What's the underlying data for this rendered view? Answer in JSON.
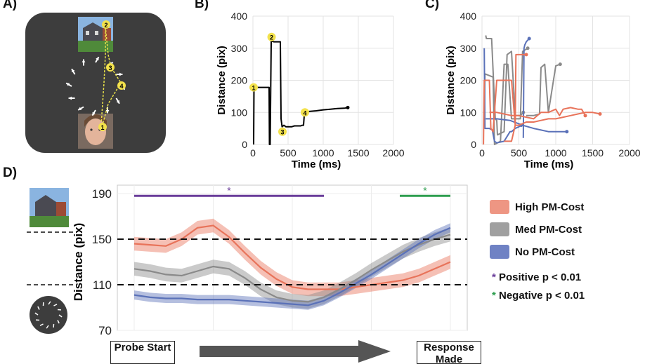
{
  "panels": {
    "a": {
      "letter": "A)"
    },
    "b": {
      "letter": "B)"
    },
    "c": {
      "letter": "C)"
    },
    "d": {
      "letter": "D)"
    }
  },
  "task_screen": {
    "probe_image": "house-photo",
    "face_image": "face-photo",
    "arrow_icon": "arrow-icon",
    "markers": [
      "1",
      "2",
      "3",
      "4"
    ],
    "colors": {
      "background": "#3d3d3d",
      "trajectory": "#e9e24a",
      "marker": "#f3e24c"
    }
  },
  "chart_data": [
    {
      "id": "B",
      "type": "line",
      "xlabel": "Time (ms)",
      "ylabel": "Distance (pix)",
      "xlim": [
        0,
        2000
      ],
      "ylim": [
        0,
        400
      ],
      "xticks": [
        "0",
        "500",
        "1000",
        "1500",
        "2000"
      ],
      "yticks": [
        "0",
        "100",
        "200",
        "300",
        "400"
      ],
      "grid": true,
      "series": [
        {
          "color": "#000000",
          "x": [
            10,
            15,
            60,
            120,
            210,
            230,
            235,
            245,
            260,
            300,
            360,
            390,
            400,
            415,
            440,
            470,
            500,
            550,
            590,
            640,
            680,
            700,
            720,
            730,
            740,
            760,
            800,
            900,
            1000,
            1100,
            1200,
            1300,
            1350
          ],
          "y": [
            0,
            178,
            178,
            178,
            178,
            178,
            0,
            0,
            322,
            320,
            320,
            320,
            80,
            55,
            60,
            55,
            55,
            55,
            58,
            58,
            58,
            60,
            60,
            90,
            95,
            100,
            103,
            105,
            108,
            110,
            112,
            113,
            115
          ]
        }
      ],
      "annotations": [
        {
          "label": "1",
          "x": 10,
          "y": 178
        },
        {
          "label": "2",
          "x": 265,
          "y": 335
        },
        {
          "label": "3",
          "x": 420,
          "y": 40
        },
        {
          "label": "4",
          "x": 740,
          "y": 100
        }
      ]
    },
    {
      "id": "C",
      "type": "line",
      "xlabel": "Time (ms)",
      "ylabel": "Distance (pix)",
      "xlim": [
        0,
        2000
      ],
      "ylim": [
        0,
        400
      ],
      "xticks": [
        "0",
        "500",
        "1000",
        "1500",
        "2000"
      ],
      "yticks": [
        "0",
        "100",
        "200",
        "300",
        "400"
      ],
      "grid": true,
      "colors": {
        "high": "#e8735a",
        "med": "#8a8a8a",
        "no": "#5a71b8"
      },
      "series": [
        {
          "color": "#8a8a8a",
          "x": [
            50,
            60,
            130,
            180,
            200,
            210,
            300,
            340,
            400,
            450,
            520,
            560
          ],
          "y": [
            340,
            330,
            330,
            80,
            75,
            30,
            40,
            280,
            290,
            90,
            90,
            100
          ]
        },
        {
          "color": "#8a8a8a",
          "x": [
            30,
            40,
            150,
            170,
            250,
            300,
            350,
            400,
            520,
            550,
            620
          ],
          "y": [
            60,
            220,
            210,
            0,
            10,
            250,
            250,
            80,
            80,
            290,
            300
          ]
        },
        {
          "color": "#8a8a8a",
          "x": [
            600,
            700,
            780,
            800,
            850,
            900,
            1000,
            1060
          ],
          "y": [
            90,
            90,
            95,
            240,
            250,
            100,
            245,
            250
          ]
        },
        {
          "color": "#5a71b8",
          "x": [
            30,
            40,
            100,
            140,
            170,
            200,
            300,
            380,
            400,
            450,
            500,
            530
          ],
          "y": [
            300,
            50,
            50,
            45,
            10,
            5,
            10,
            40,
            40,
            50,
            55,
            60
          ]
        },
        {
          "color": "#5a71b8",
          "x": [
            560,
            570,
            580,
            600,
            640
          ],
          "y": [
            20,
            300,
            310,
            320,
            330
          ]
        },
        {
          "color": "#5a71b8",
          "x": [
            50,
            200,
            380,
            550,
            700,
            800,
            900,
            1000,
            1150
          ],
          "y": [
            80,
            80,
            75,
            60,
            50,
            45,
            40,
            40,
            40
          ]
        },
        {
          "color": "#e8735a",
          "x": [
            20,
            30,
            100,
            120,
            150,
            200,
            300,
            400,
            450,
            460,
            500,
            600
          ],
          "y": [
            0,
            200,
            200,
            50,
            40,
            200,
            200,
            200,
            60,
            280,
            280,
            280
          ]
        },
        {
          "color": "#e8735a",
          "x": [
            300,
            400,
            450,
            500,
            600,
            700,
            800,
            900,
            1000,
            1100,
            1200,
            1300,
            1400,
            1500,
            1600
          ],
          "y": [
            10,
            10,
            60,
            60,
            70,
            70,
            75,
            80,
            80,
            85,
            90,
            95,
            100,
            100,
            95
          ]
        },
        {
          "color": "#e8735a",
          "x": [
            100,
            200,
            300,
            400,
            500,
            600,
            700,
            800,
            900,
            1000,
            1050,
            1100,
            1200,
            1300,
            1350,
            1400
          ],
          "y": [
            100,
            100,
            95,
            90,
            90,
            85,
            80,
            100,
            100,
            110,
            90,
            110,
            115,
            110,
            110,
            90
          ]
        }
      ]
    },
    {
      "id": "D",
      "type": "area",
      "xlabel": "",
      "ylabel": "Distance (pix)",
      "xlim": [
        0,
        100
      ],
      "ylim": [
        70,
        190
      ],
      "yticks": [
        "70",
        "110",
        "150",
        "190"
      ],
      "grid": true,
      "reference_lines": [
        150,
        110
      ],
      "significance_bars": [
        {
          "label": "*",
          "color": "#6a3d9a",
          "x_start": 0,
          "x_end": 60
        },
        {
          "label": "*",
          "color": "#2e9e4f",
          "x_start": 84,
          "x_end": 100
        }
      ],
      "x": [
        0,
        5,
        10,
        15,
        20,
        25,
        30,
        35,
        40,
        45,
        50,
        55,
        60,
        65,
        70,
        75,
        80,
        85,
        90,
        95,
        100
      ],
      "series": [
        {
          "name": "High PM-Cost",
          "color": "#e8735a",
          "values": [
            146,
            145,
            144,
            150,
            160,
            162,
            152,
            138,
            125,
            115,
            108,
            106,
            106,
            106,
            108,
            110,
            112,
            114,
            118,
            124,
            130
          ],
          "band": 6
        },
        {
          "name": "Med PM-Cost",
          "color": "#8a8a8a",
          "values": [
            124,
            122,
            119,
            118,
            122,
            126,
            124,
            116,
            106,
            99,
            96,
            95,
            99,
            106,
            114,
            123,
            131,
            139,
            145,
            150,
            154
          ],
          "band": 6
        },
        {
          "name": "No PM-Cost",
          "color": "#5a71b8",
          "values": [
            101,
            99,
            98,
            98,
            97,
            97,
            97,
            96,
            95,
            94,
            93,
            92,
            96,
            103,
            111,
            119,
            128,
            137,
            146,
            154,
            160
          ],
          "band": 4
        }
      ],
      "legend": {
        "items": [
          {
            "label": "High PM-Cost",
            "color": "#e8735a"
          },
          {
            "label": "Med PM-Cost",
            "color": "#a0a0a0"
          },
          {
            "label": "No PM-Cost",
            "color": "#6f82c4"
          }
        ],
        "notes": [
          {
            "star": "*",
            "color": "#6a3d9a",
            "label": "Positive p < 0.01"
          },
          {
            "star": "*",
            "color": "#2e9e4f",
            "label": "Negative p < 0.01"
          }
        ]
      },
      "x_endpoints": {
        "start": "Probe Start",
        "end": "Response Made"
      }
    }
  ]
}
